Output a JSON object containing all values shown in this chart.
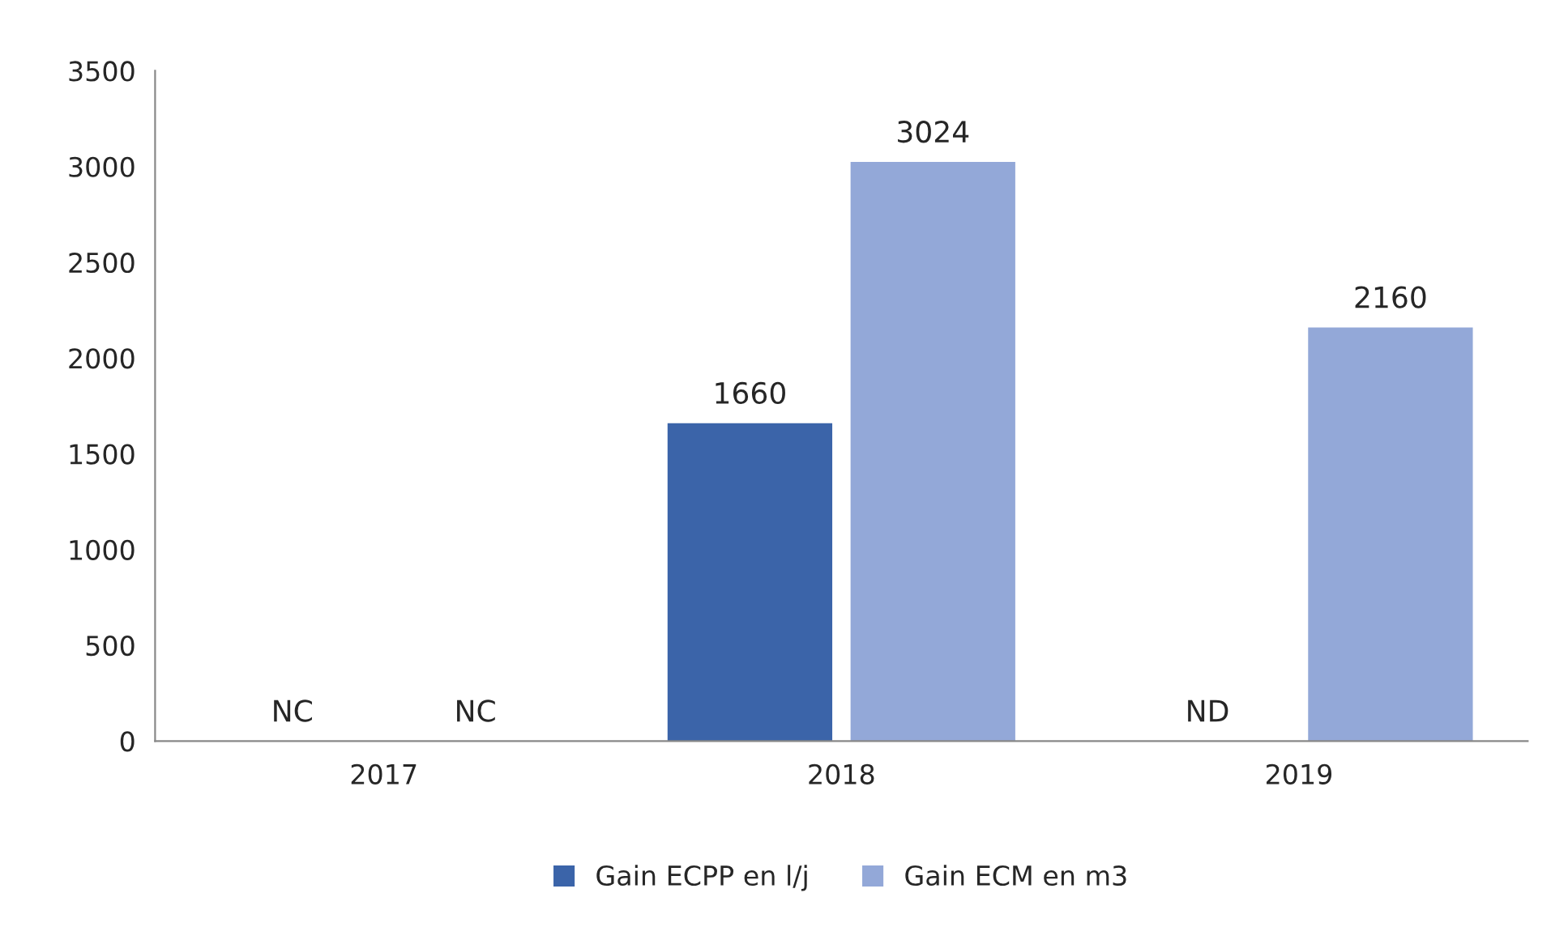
{
  "chart_data": {
    "type": "bar",
    "categories": [
      "2017",
      "2018",
      "2019"
    ],
    "series": [
      {
        "name": "Gain ECPP en l/j",
        "color": "#3b64a9",
        "values": [
          null,
          1660,
          null
        ],
        "value_labels": [
          "NC",
          "1660",
          "ND"
        ]
      },
      {
        "name": "Gain ECM en m3",
        "color": "#93a8d8",
        "values": [
          null,
          3024,
          2160
        ],
        "value_labels": [
          "NC",
          "3024",
          "2160"
        ]
      }
    ],
    "ylim": [
      0,
      3500
    ],
    "yticks": [
      0,
      500,
      1000,
      1500,
      2000,
      2500,
      3000,
      3500
    ],
    "grid": false,
    "legend": "bottom"
  }
}
